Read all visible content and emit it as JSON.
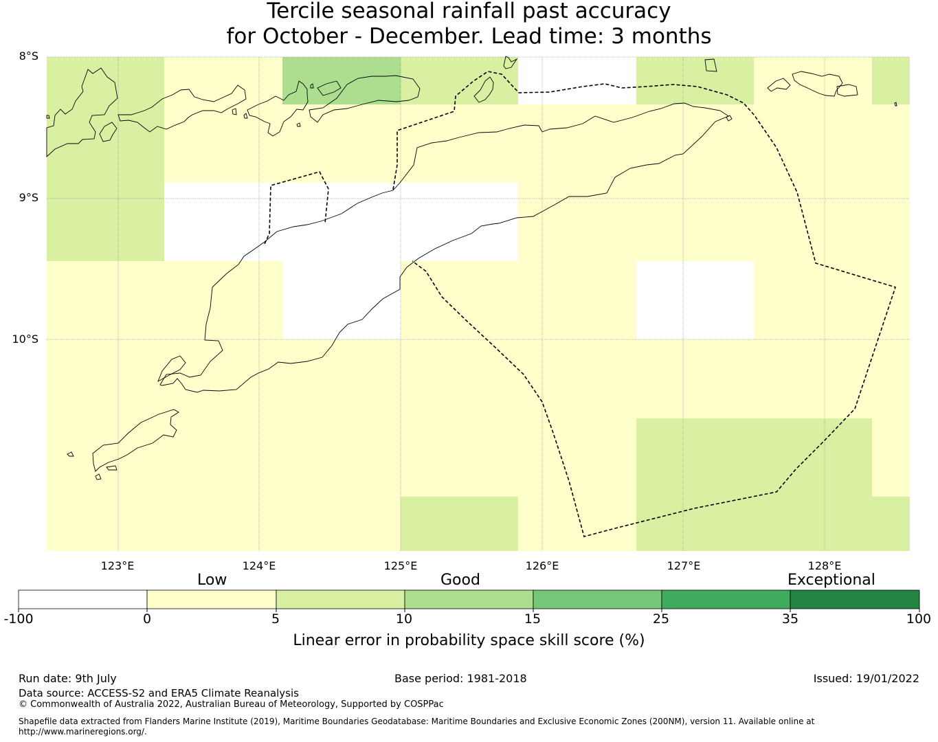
{
  "title": {
    "line1": "Tercile seasonal rainfall past accuracy",
    "line2": "for October - December. Lead time: 3 months"
  },
  "map": {
    "lat_labels": [
      "8°S",
      "9°S",
      "10°S"
    ],
    "lon_labels": [
      "123°E",
      "124°E",
      "125°E",
      "126°E",
      "127°E",
      "128°E"
    ],
    "lat_range": [
      -11.5,
      -8.0
    ],
    "lon_range": [
      122.5,
      128.6
    ],
    "grid": true,
    "boundary": "dashed",
    "cells_note": "skill score categories per grid cell"
  },
  "legend": {
    "category_labels": [
      "Low",
      "Good",
      "Exceptional"
    ],
    "ticks": [
      "-100",
      "0",
      "5",
      "10",
      "15",
      "25",
      "35",
      "100"
    ],
    "colors": [
      "#ffffff",
      "#ffffcc",
      "#d9f0a3",
      "#addd8e",
      "#78c679",
      "#41ab5d",
      "#238443"
    ],
    "title": "Linear error in probability space skill score (%)"
  },
  "footer": {
    "run_date": "Run date: 9th July",
    "base_period": "Base period: 1981-2018",
    "issued": "Issued: 19/01/2022",
    "data_source": "Data source: ACCESS-S2 and ERA5 Climate Reanalysis",
    "copyright": "© Commonwealth of Australia 2022, Australian Bureau of Meteorology, Supported by COSPPac",
    "shapefile_line1": "Shapefile data extracted from Flanders Marine Institute (2019), Maritime Boundaries Geodatabase: Maritime Boundaries and Exclusive Economic Zones (200NM), version 11. Available online at",
    "shapefile_line2": "http://www.marineregions.org/."
  }
}
